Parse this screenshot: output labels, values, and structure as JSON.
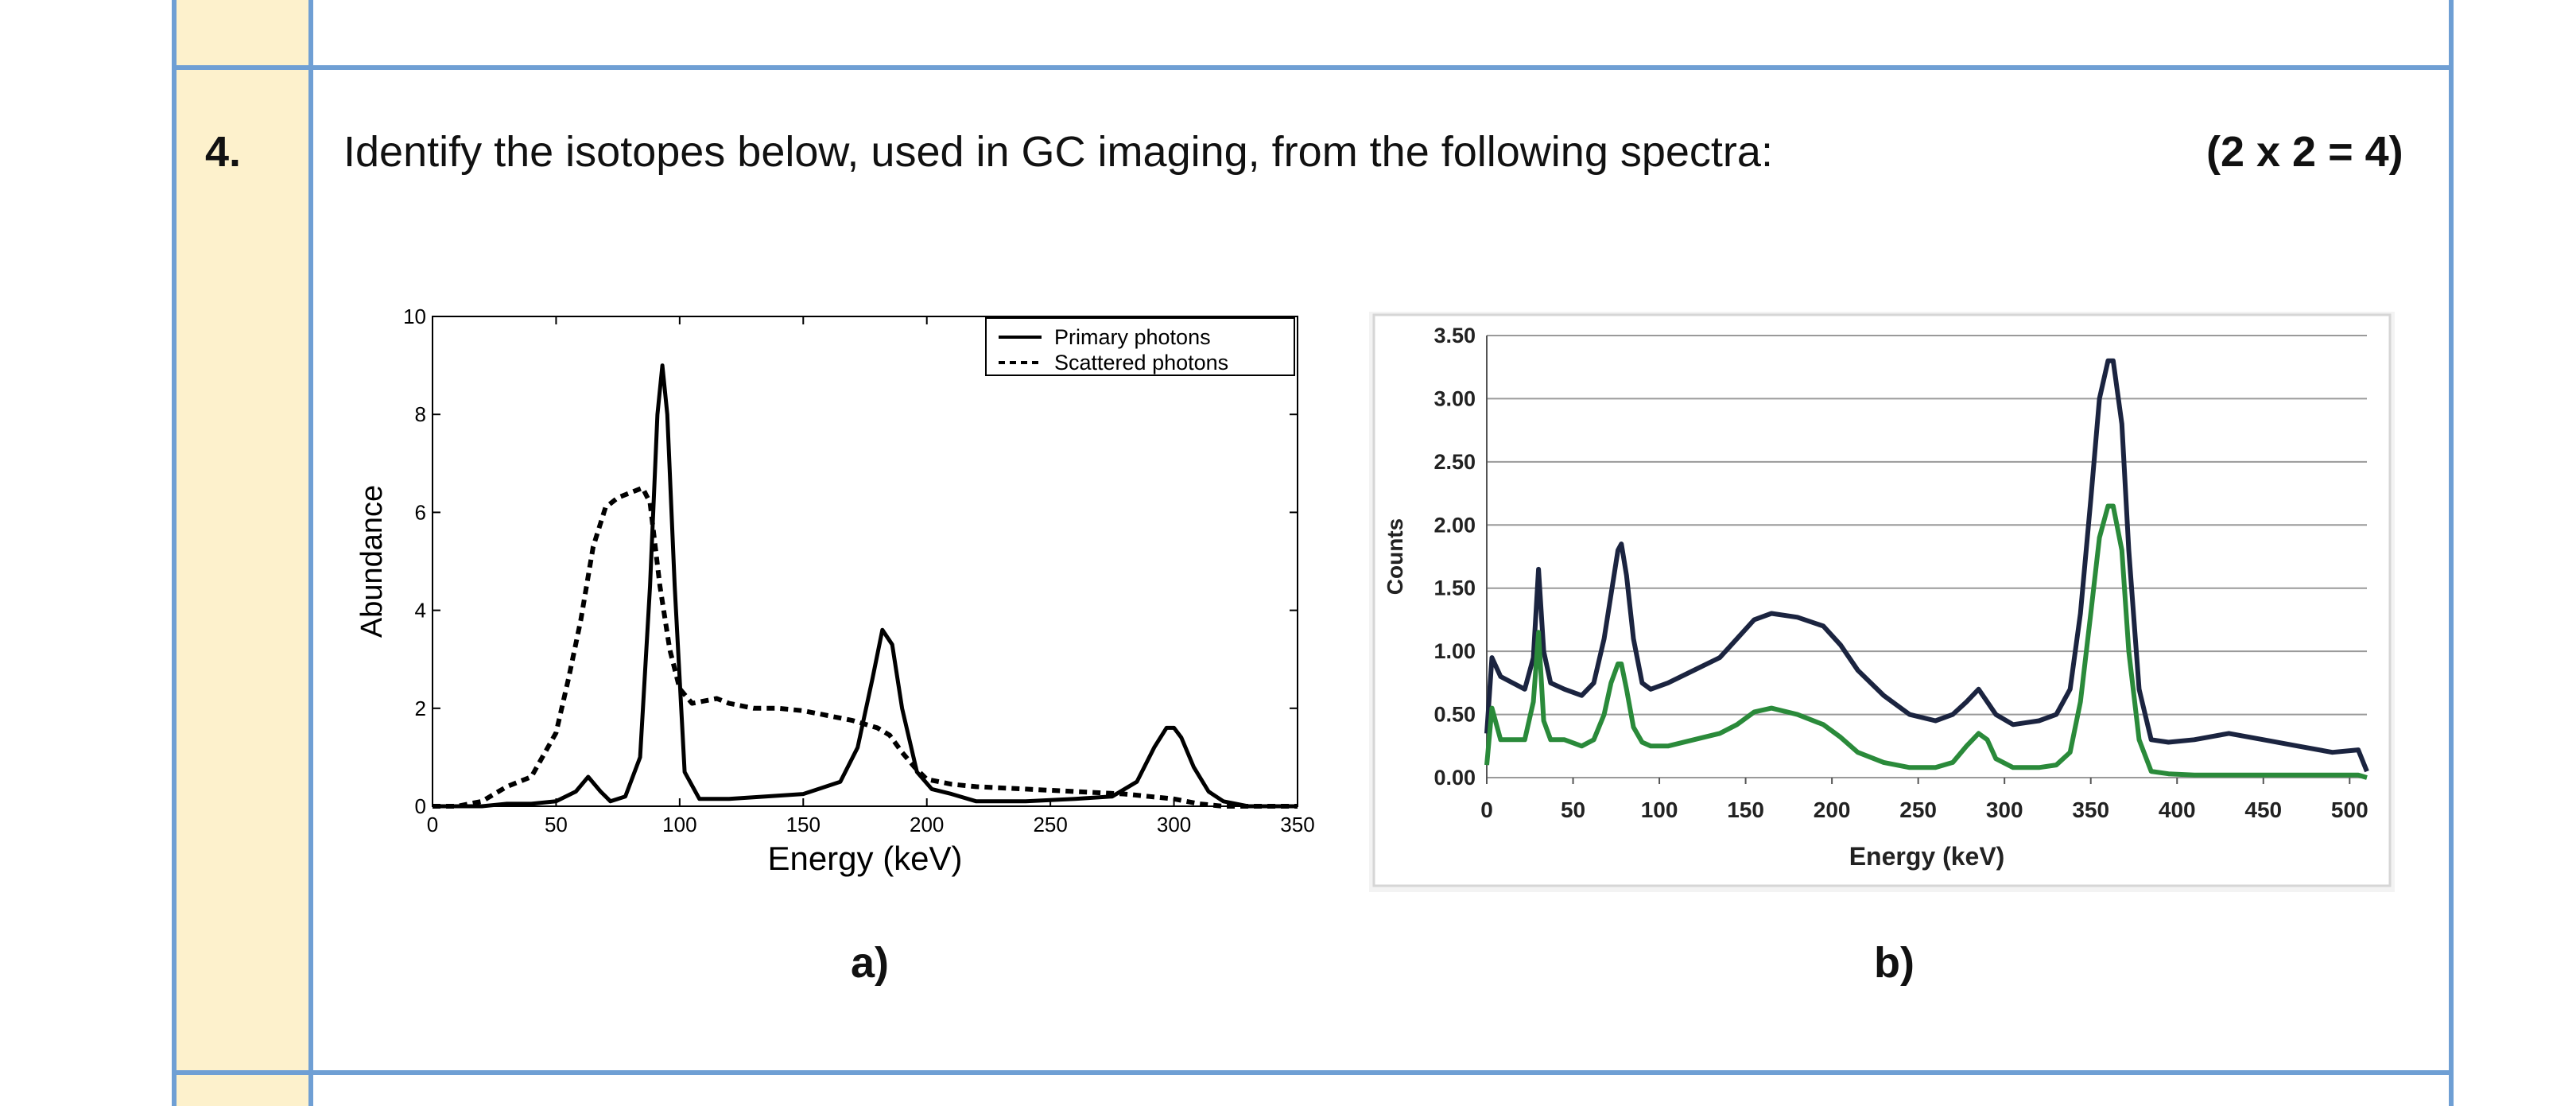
{
  "question": {
    "number": "4.",
    "text": "Identify the isotopes below, used in GC imaging, from the following spectra:",
    "marks": "(2 x 2 = 4)"
  },
  "chart_data": [
    {
      "type": "line",
      "label": "a)",
      "xlabel": "Energy (keV)",
      "ylabel": "Abundance",
      "xlim": [
        0,
        350
      ],
      "ylim": [
        0,
        10
      ],
      "x_ticks": [
        0,
        50,
        100,
        150,
        200,
        250,
        300,
        350
      ],
      "y_ticks": [
        0,
        2,
        4,
        6,
        8,
        10
      ],
      "legend_position": "top-right",
      "grid": false,
      "series": [
        {
          "name": "Primary photons",
          "style": "solid",
          "color": "#000000",
          "x": [
            0,
            20,
            30,
            40,
            50,
            58,
            63,
            68,
            72,
            78,
            84,
            88,
            91,
            93,
            95,
            98,
            102,
            108,
            120,
            150,
            165,
            172,
            178,
            182,
            186,
            190,
            196,
            202,
            210,
            220,
            240,
            260,
            275,
            285,
            292,
            297,
            300,
            303,
            308,
            314,
            320,
            330,
            350
          ],
          "y": [
            0,
            0,
            0.05,
            0.05,
            0.1,
            0.3,
            0.6,
            0.3,
            0.1,
            0.2,
            1.0,
            4.5,
            8.0,
            9.0,
            8.0,
            4.5,
            0.7,
            0.15,
            0.15,
            0.25,
            0.5,
            1.2,
            2.6,
            3.6,
            3.3,
            2.0,
            0.7,
            0.35,
            0.25,
            0.1,
            0.1,
            0.15,
            0.2,
            0.5,
            1.2,
            1.6,
            1.6,
            1.4,
            0.8,
            0.3,
            0.1,
            0,
            0
          ]
        },
        {
          "name": "Scattered photons",
          "style": "dashed",
          "color": "#000000",
          "x": [
            0,
            10,
            20,
            30,
            40,
            50,
            55,
            60,
            65,
            70,
            75,
            80,
            85,
            88,
            92,
            96,
            100,
            105,
            110,
            115,
            120,
            130,
            140,
            150,
            160,
            170,
            180,
            185,
            190,
            195,
            200,
            210,
            220,
            240,
            260,
            280,
            290,
            300,
            310,
            320,
            330,
            350
          ],
          "y": [
            0,
            0,
            0.1,
            0.4,
            0.6,
            1.5,
            2.6,
            3.8,
            5.3,
            6.1,
            6.3,
            6.4,
            6.5,
            6.2,
            4.5,
            3.2,
            2.4,
            2.1,
            2.15,
            2.2,
            2.1,
            2.0,
            2.0,
            1.95,
            1.85,
            1.75,
            1.6,
            1.45,
            1.1,
            0.8,
            0.55,
            0.45,
            0.4,
            0.35,
            0.3,
            0.25,
            0.2,
            0.15,
            0.05,
            0,
            0,
            0
          ]
        }
      ]
    },
    {
      "type": "line",
      "label": "b)",
      "xlabel": "Energy (keV)",
      "ylabel": "Counts",
      "xlim": [
        0,
        510
      ],
      "ylim": [
        0,
        3.5
      ],
      "x_ticks": [
        "0",
        "50",
        "100",
        "150",
        "200",
        "250",
        "300",
        "350",
        "400",
        "450",
        "500"
      ],
      "y_ticks": [
        "0.00",
        "0.50",
        "1.00",
        "1.50",
        "2.00",
        "2.50",
        "3.00",
        "3.50"
      ],
      "grid": true,
      "series": [
        {
          "color": "#1b2440",
          "x": [
            0,
            3,
            8,
            15,
            22,
            27,
            30,
            33,
            37,
            45,
            55,
            62,
            68,
            72,
            76,
            78,
            81,
            85,
            90,
            95,
            105,
            120,
            135,
            145,
            155,
            165,
            180,
            195,
            205,
            215,
            230,
            245,
            260,
            270,
            278,
            285,
            290,
            295,
            305,
            320,
            330,
            338,
            344,
            350,
            355,
            360,
            363,
            368,
            372,
            378,
            385,
            395,
            410,
            430,
            450,
            470,
            490,
            505,
            510
          ],
          "y": [
            0.35,
            0.95,
            0.8,
            0.75,
            0.7,
            0.95,
            1.65,
            1.0,
            0.75,
            0.7,
            0.65,
            0.75,
            1.1,
            1.45,
            1.8,
            1.85,
            1.6,
            1.1,
            0.75,
            0.7,
            0.75,
            0.85,
            0.95,
            1.1,
            1.25,
            1.3,
            1.27,
            1.2,
            1.05,
            0.85,
            0.65,
            0.5,
            0.45,
            0.5,
            0.6,
            0.7,
            0.6,
            0.5,
            0.42,
            0.45,
            0.5,
            0.7,
            1.3,
            2.2,
            3.0,
            3.3,
            3.3,
            2.8,
            1.8,
            0.7,
            0.3,
            0.28,
            0.3,
            0.35,
            0.3,
            0.25,
            0.2,
            0.22,
            0.05
          ]
        },
        {
          "color": "#2a8a3a",
          "x": [
            0,
            3,
            8,
            15,
            22,
            27,
            30,
            33,
            37,
            45,
            55,
            62,
            68,
            72,
            76,
            78,
            81,
            85,
            90,
            95,
            105,
            120,
            135,
            145,
            155,
            165,
            180,
            195,
            205,
            215,
            230,
            245,
            260,
            270,
            278,
            285,
            290,
            295,
            305,
            320,
            330,
            338,
            344,
            350,
            355,
            360,
            363,
            368,
            372,
            378,
            385,
            395,
            410,
            430,
            450,
            470,
            490,
            505,
            510
          ],
          "y": [
            0.1,
            0.55,
            0.3,
            0.3,
            0.3,
            0.6,
            1.15,
            0.45,
            0.3,
            0.3,
            0.25,
            0.3,
            0.5,
            0.75,
            0.9,
            0.9,
            0.7,
            0.4,
            0.28,
            0.25,
            0.25,
            0.3,
            0.35,
            0.42,
            0.52,
            0.55,
            0.5,
            0.42,
            0.32,
            0.2,
            0.12,
            0.08,
            0.08,
            0.12,
            0.25,
            0.35,
            0.3,
            0.15,
            0.08,
            0.08,
            0.1,
            0.2,
            0.6,
            1.3,
            1.9,
            2.15,
            2.15,
            1.8,
            1.0,
            0.3,
            0.05,
            0.03,
            0.02,
            0.02,
            0.02,
            0.02,
            0.02,
            0.02,
            0.0
          ]
        }
      ]
    }
  ]
}
